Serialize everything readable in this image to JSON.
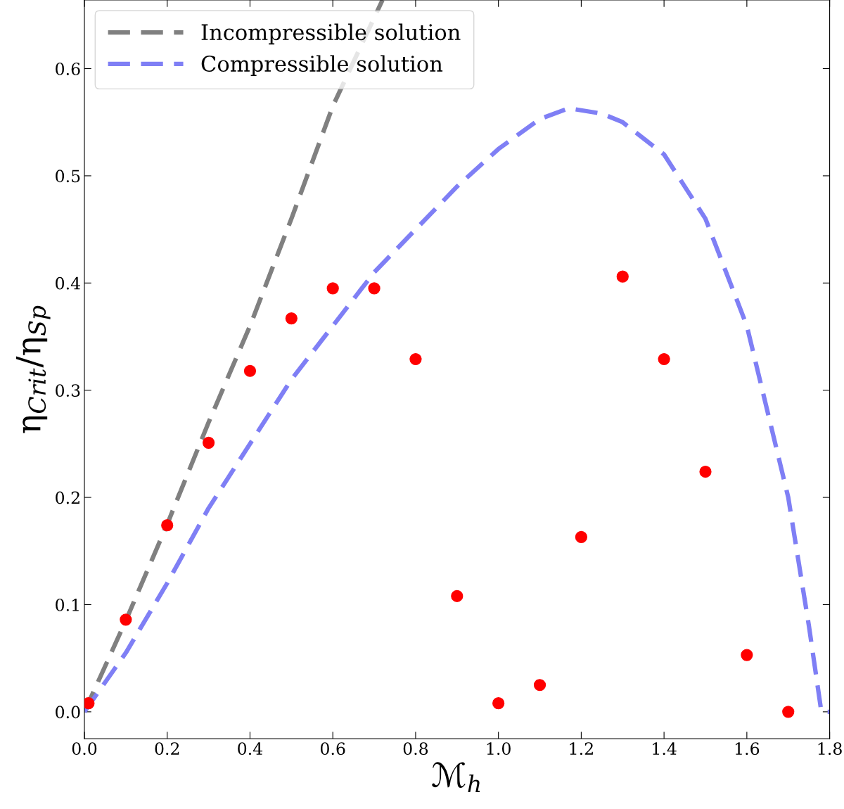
{
  "chart_data": {
    "type": "scatter",
    "xlabel": "ℳ$_{h}$",
    "ylabel": "η$_{Crit}$/η$_{Sp}$",
    "xlim": [
      0,
      1.8
    ],
    "ylim": [
      -0.025,
      0.664
    ],
    "xticks": [
      {
        "value": 0,
        "label": "0.0"
      },
      0.2,
      0.4,
      0.6,
      0.8,
      {
        "value": 1,
        "label": "1.0"
      },
      1.2,
      1.4,
      1.6,
      1.8
    ],
    "yticks": [
      {
        "value": 0,
        "label": "0.0"
      },
      0.1,
      0.2,
      0.3,
      0.4,
      0.5,
      0.6
    ],
    "grid": false,
    "legend": "top left",
    "series": [
      {
        "name": "Incompressible solution",
        "type": "line",
        "line_style": "dashed",
        "marker": "none",
        "color": "#808080",
        "x": [
          0,
          0.1,
          0.2,
          0.3,
          0.4,
          0.5,
          0.6,
          0.72
        ],
        "values": [
          0,
          0.085,
          0.175,
          0.27,
          0.36,
          0.46,
          0.565,
          0.664
        ]
      },
      {
        "name": "Compressible solution",
        "type": "line",
        "line_style": "dashed",
        "marker": "none",
        "color": "#7f7ff5",
        "x": [
          0,
          0.1,
          0.2,
          0.3,
          0.4,
          0.5,
          0.6,
          0.7,
          0.8,
          0.9,
          1.0,
          1.1,
          1.17,
          1.25,
          1.3,
          1.4,
          1.5,
          1.6,
          1.7,
          1.75,
          1.78,
          1.8
        ],
        "values": [
          0,
          0.055,
          0.12,
          0.19,
          0.25,
          0.31,
          0.36,
          0.41,
          0.45,
          0.49,
          0.525,
          0.553,
          0.563,
          0.558,
          0.55,
          0.52,
          0.46,
          0.36,
          0.2,
          0.08,
          0,
          0
        ]
      },
      {
        "marker": "circle",
        "color": "#ff0000",
        "x": [
          0.01,
          0.1,
          0.2,
          0.3,
          0.4,
          0.5,
          0.6,
          0.7,
          0.8,
          0.9,
          1.0,
          1.1,
          1.2,
          1.3,
          1.4,
          1.5,
          1.6,
          1.7
        ],
        "values": [
          0.008,
          0.086,
          0.174,
          0.251,
          0.318,
          0.367,
          0.395,
          0.395,
          0.329,
          0.108,
          0.008,
          0.025,
          0.163,
          0.406,
          0.329,
          0.224,
          0.053,
          0.0
        ]
      }
    ]
  }
}
